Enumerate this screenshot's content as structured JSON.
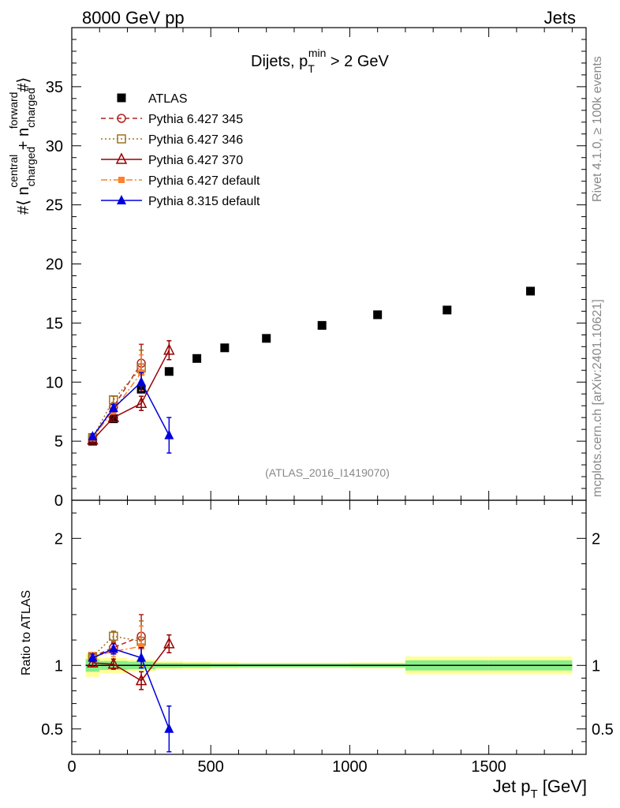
{
  "header": {
    "left": "8000 GeV pp",
    "right": "Jets",
    "side_rivet": "Rivet 4.1.0, ≥ 100k events",
    "side_mcplots": "mcplots.cern.ch [arXiv:2401.10621]",
    "watermark": "(ATLAS_2016_I1419070)"
  },
  "chart_data": [
    {
      "id": "main",
      "type": "scatter",
      "title": "Dijets, p_T^min > 2 GeV",
      "title_parts": {
        "pre": "Dijets, p",
        "sub": "T",
        "sup": "min",
        "post": " > 2 GeV"
      },
      "ylabel": "#⟨ n^central_charged + n^forward_charged #⟩",
      "ylabel_parts": {
        "pre": "#⟨ n",
        "sup1": "central",
        "sub1": "charged",
        "mid": " + n",
        "sup2": "forward",
        "sub2": "charged",
        "post": "#⟩"
      },
      "xlim": [
        0,
        1850
      ],
      "ylim": [
        0,
        40
      ],
      "yticks": [
        "0",
        "5",
        "10",
        "15",
        "20",
        "25",
        "30",
        "35"
      ],
      "legend_position": "top-left",
      "series": [
        {
          "name": "ATLAS",
          "color": "#000000",
          "marker": "square-filled",
          "line": "none",
          "x": [
            75,
            150,
            250,
            350,
            450,
            550,
            700,
            900,
            1100,
            1350,
            1650
          ],
          "y": [
            5.0,
            6.9,
            9.4,
            10.9,
            12.0,
            12.9,
            13.7,
            14.8,
            15.7,
            16.1,
            17.7
          ]
        },
        {
          "name": "Pythia 6.427 345",
          "color": "#b22222",
          "marker": "circle-open",
          "line": "dashed",
          "x": [
            75,
            150,
            250
          ],
          "y": [
            5.3,
            7.9,
            11.6
          ],
          "err": [
            0.2,
            0.3,
            1.6
          ]
        },
        {
          "name": "Pythia 6.427 346",
          "color": "#a07020",
          "marker": "square-open",
          "line": "dotted",
          "x": [
            75,
            150,
            250
          ],
          "y": [
            5.3,
            8.5,
            11.2
          ],
          "err": [
            0.2,
            0.3,
            1.5
          ]
        },
        {
          "name": "Pythia 6.427 370",
          "color": "#990000",
          "marker": "triangle-open",
          "line": "solid",
          "x": [
            75,
            150,
            250,
            350
          ],
          "y": [
            5.1,
            7.0,
            8.2,
            12.7
          ],
          "err": [
            0.2,
            0.3,
            0.6,
            0.8
          ]
        },
        {
          "name": "Pythia 6.427 default",
          "color": "#ff7f2a",
          "marker": "square-filled-small",
          "line": "dashdot",
          "x": [
            75,
            150,
            250
          ],
          "y": [
            5.3,
            7.6,
            10.8
          ],
          "err": [
            0.2,
            0.3,
            1.5
          ]
        },
        {
          "name": "Pythia 8.315 default",
          "color": "#0000dd",
          "marker": "triangle-filled",
          "line": "solid",
          "x": [
            75,
            150,
            250,
            350
          ],
          "y": [
            5.4,
            7.8,
            10.0,
            5.5
          ],
          "err": [
            0.2,
            0.3,
            0.8,
            1.5
          ]
        }
      ]
    },
    {
      "id": "ratio",
      "type": "line",
      "ylabel": "Ratio to ATLAS",
      "xlabel": "Jet p_T [GeV]",
      "xlabel_parts": {
        "pre": "Jet p",
        "sub": "T",
        "post": " [GeV]"
      },
      "xlim": [
        0,
        1850
      ],
      "ylim": [
        0.3,
        2.3
      ],
      "xticks": [
        "0",
        "500",
        "1000",
        "1500"
      ],
      "yticks": [
        "0.5",
        "1",
        "2"
      ],
      "band_bins": [
        {
          "x0": 50,
          "x1": 100,
          "inner": 0.05,
          "outer": 0.09
        },
        {
          "x0": 100,
          "x1": 200,
          "inner": 0.035,
          "outer": 0.06
        },
        {
          "x0": 200,
          "x1": 300,
          "inner": 0.03,
          "outer": 0.045
        },
        {
          "x0": 300,
          "x1": 400,
          "inner": 0.02,
          "outer": 0.035
        },
        {
          "x0": 400,
          "x1": 500,
          "inner": 0.018,
          "outer": 0.03
        },
        {
          "x0": 500,
          "x1": 600,
          "inner": 0.016,
          "outer": 0.025
        },
        {
          "x0": 600,
          "x1": 800,
          "inner": 0.015,
          "outer": 0.022
        },
        {
          "x0": 800,
          "x1": 1000,
          "inner": 0.015,
          "outer": 0.022
        },
        {
          "x0": 1000,
          "x1": 1200,
          "inner": 0.016,
          "outer": 0.024
        },
        {
          "x0": 1200,
          "x1": 1500,
          "inner": 0.04,
          "outer": 0.07
        },
        {
          "x0": 1500,
          "x1": 1800,
          "inner": 0.04,
          "outer": 0.07
        }
      ],
      "series": [
        {
          "name": "Pythia 6.427 345",
          "x": [
            75,
            150,
            250
          ],
          "y": [
            1.07,
            1.14,
            1.23
          ],
          "err": [
            0.03,
            0.04,
            0.17
          ]
        },
        {
          "name": "Pythia 6.427 346",
          "x": [
            75,
            150,
            250
          ],
          "y": [
            1.07,
            1.23,
            1.19
          ],
          "err": [
            0.03,
            0.04,
            0.16
          ]
        },
        {
          "name": "Pythia 6.427 370",
          "x": [
            75,
            150,
            250,
            350
          ],
          "y": [
            1.02,
            1.01,
            0.88,
            1.17
          ],
          "err": [
            0.03,
            0.04,
            0.07,
            0.07
          ]
        },
        {
          "name": "Pythia 6.427 default",
          "x": [
            75,
            150,
            250
          ],
          "y": [
            1.07,
            1.11,
            1.15
          ],
          "err": [
            0.03,
            0.04,
            0.16
          ]
        },
        {
          "name": "Pythia 8.315 default",
          "x": [
            75,
            150,
            250,
            350
          ],
          "y": [
            1.06,
            1.13,
            1.06,
            0.5
          ],
          "err": [
            0.03,
            0.04,
            0.08,
            0.18
          ]
        }
      ]
    }
  ]
}
